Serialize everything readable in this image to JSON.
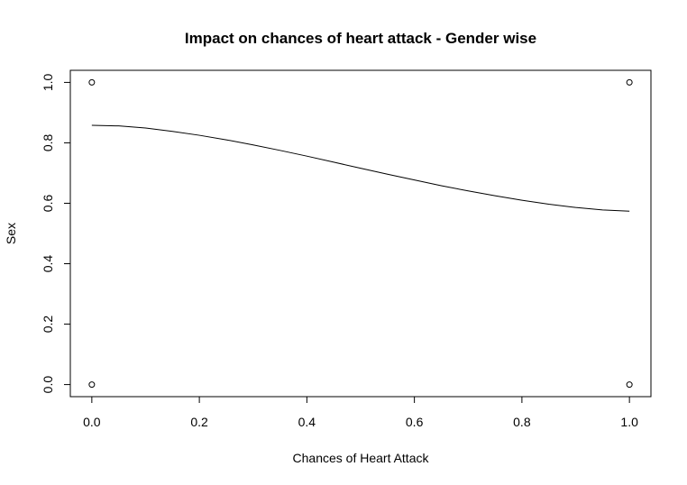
{
  "chart_data": {
    "type": "scatter",
    "title": "Impact on chances of heart attack - Gender wise",
    "xlabel": "Chances of Heart Attack",
    "ylabel": "Sex",
    "xlim": [
      -0.04,
      1.04
    ],
    "ylim": [
      -0.04,
      1.04
    ],
    "xticks": [
      "0.0",
      "0.2",
      "0.4",
      "0.6",
      "0.8",
      "1.0"
    ],
    "yticks": [
      "0.0",
      "0.2",
      "0.4",
      "0.6",
      "0.8",
      "1.0"
    ],
    "grid": false,
    "series": [
      {
        "kind": "points",
        "marker": "open-circle",
        "points": [
          {
            "x": 0.0,
            "y": 1.0
          },
          {
            "x": 0.0,
            "y": 0.0
          },
          {
            "x": 1.0,
            "y": 1.0
          },
          {
            "x": 1.0,
            "y": 0.0
          }
        ]
      },
      {
        "kind": "smooth-line",
        "x": [
          0.0,
          0.05,
          0.1,
          0.15,
          0.2,
          0.25,
          0.3,
          0.35,
          0.4,
          0.45,
          0.5,
          0.55,
          0.6,
          0.65,
          0.7,
          0.75,
          0.8,
          0.85,
          0.9,
          0.95,
          1.0
        ],
        "y": [
          0.858,
          0.856,
          0.849,
          0.838,
          0.825,
          0.81,
          0.793,
          0.775,
          0.756,
          0.736,
          0.716,
          0.696,
          0.677,
          0.658,
          0.641,
          0.625,
          0.61,
          0.597,
          0.586,
          0.578,
          0.574
        ]
      }
    ]
  }
}
